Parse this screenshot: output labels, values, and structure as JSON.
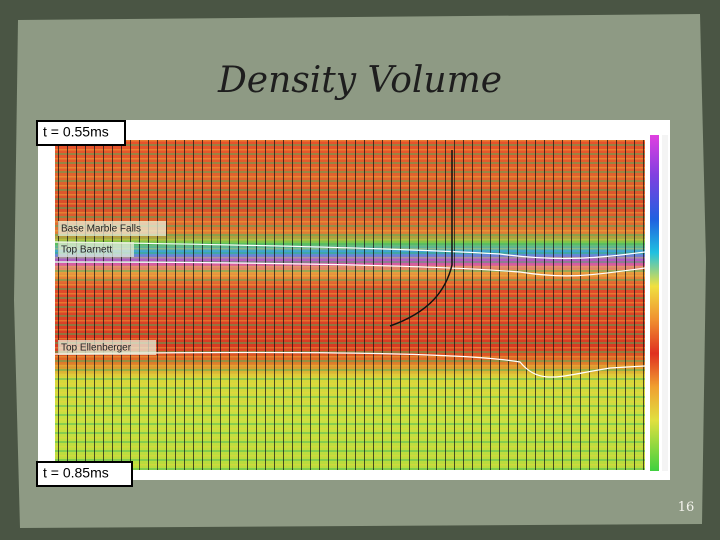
{
  "slide": {
    "title": "Density Volume",
    "top_time_label": "t = 0.55ms",
    "bottom_time_label": "t = 0.85ms",
    "horizons": [
      "Base Marble Falls",
      "Top Barnett",
      "Top Ellenberger"
    ],
    "page_number": "16"
  }
}
